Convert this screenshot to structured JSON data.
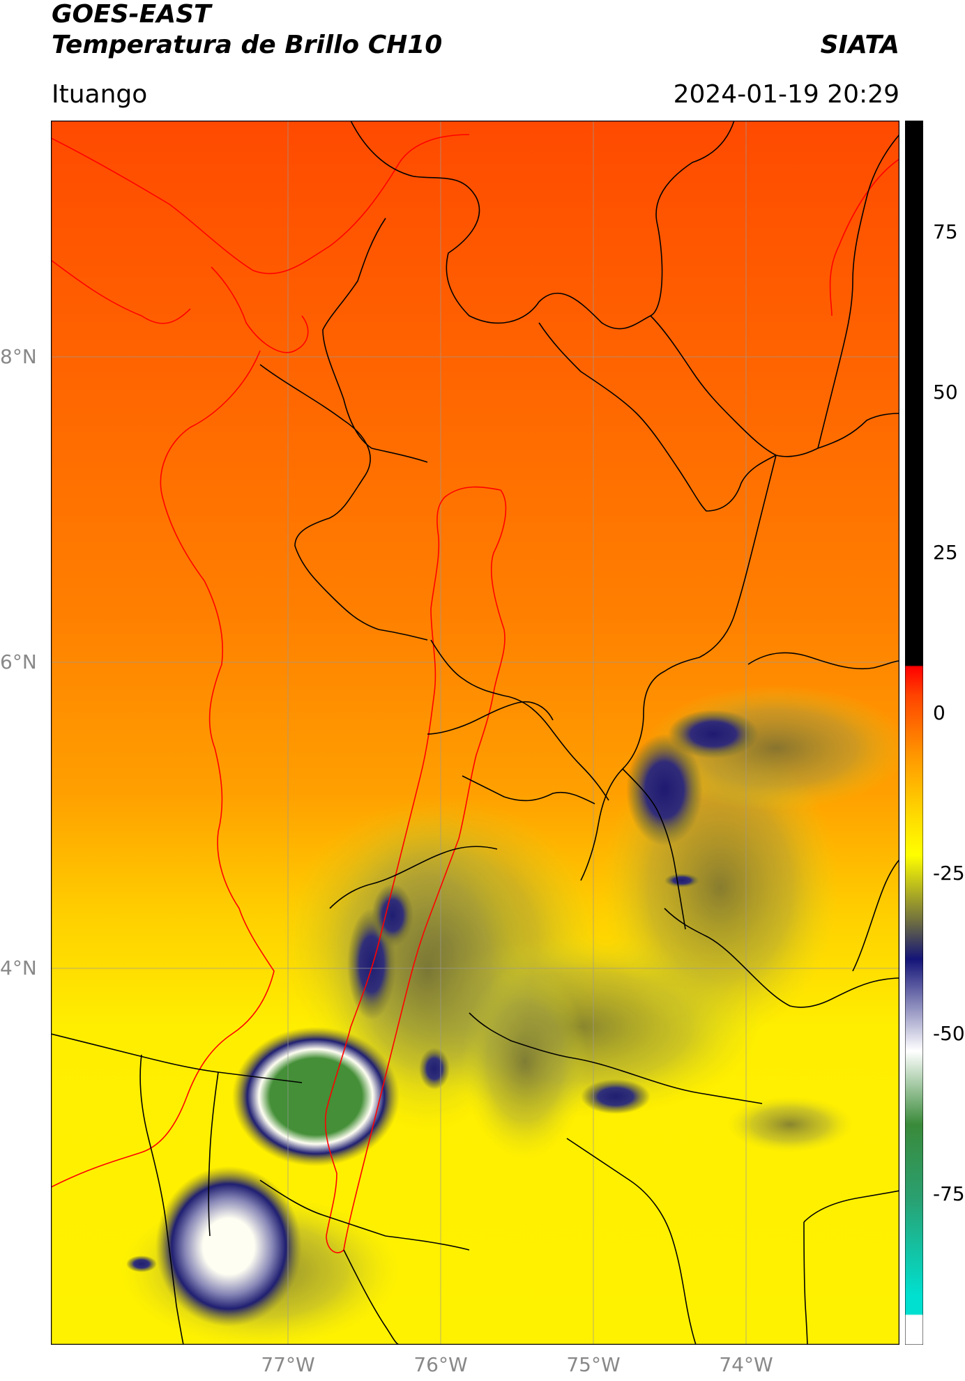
{
  "header": {
    "satellite": "GOES-EAST",
    "product": "Temperatura de Brillo CH10",
    "institution": "SIATA",
    "region": "Ituango",
    "datetime": "2024-01-19 20:29"
  },
  "map": {
    "lat_ticks": [
      "8°N",
      "6°N",
      "4°N"
    ],
    "lon_ticks": [
      "77°W",
      "76°W",
      "75°W",
      "74°W"
    ],
    "grid": true,
    "border_color": "#000000",
    "watershed_color": "#ff0000",
    "gridline_color": "#999999"
  },
  "colorbar": {
    "ticks": [
      "75",
      "50",
      "25",
      "0",
      "-25",
      "-50",
      "-75"
    ],
    "colors": {
      "warm": "#ff5500",
      "orange": "#ff9900",
      "yellow": "#ffff00",
      "olive": "#6b6b3a",
      "navy": "#141478",
      "white": "#ffffff",
      "green": "#3a8a3a",
      "cyan": "#00e0d0",
      "red": "#ff0000",
      "black": "#000000"
    }
  }
}
